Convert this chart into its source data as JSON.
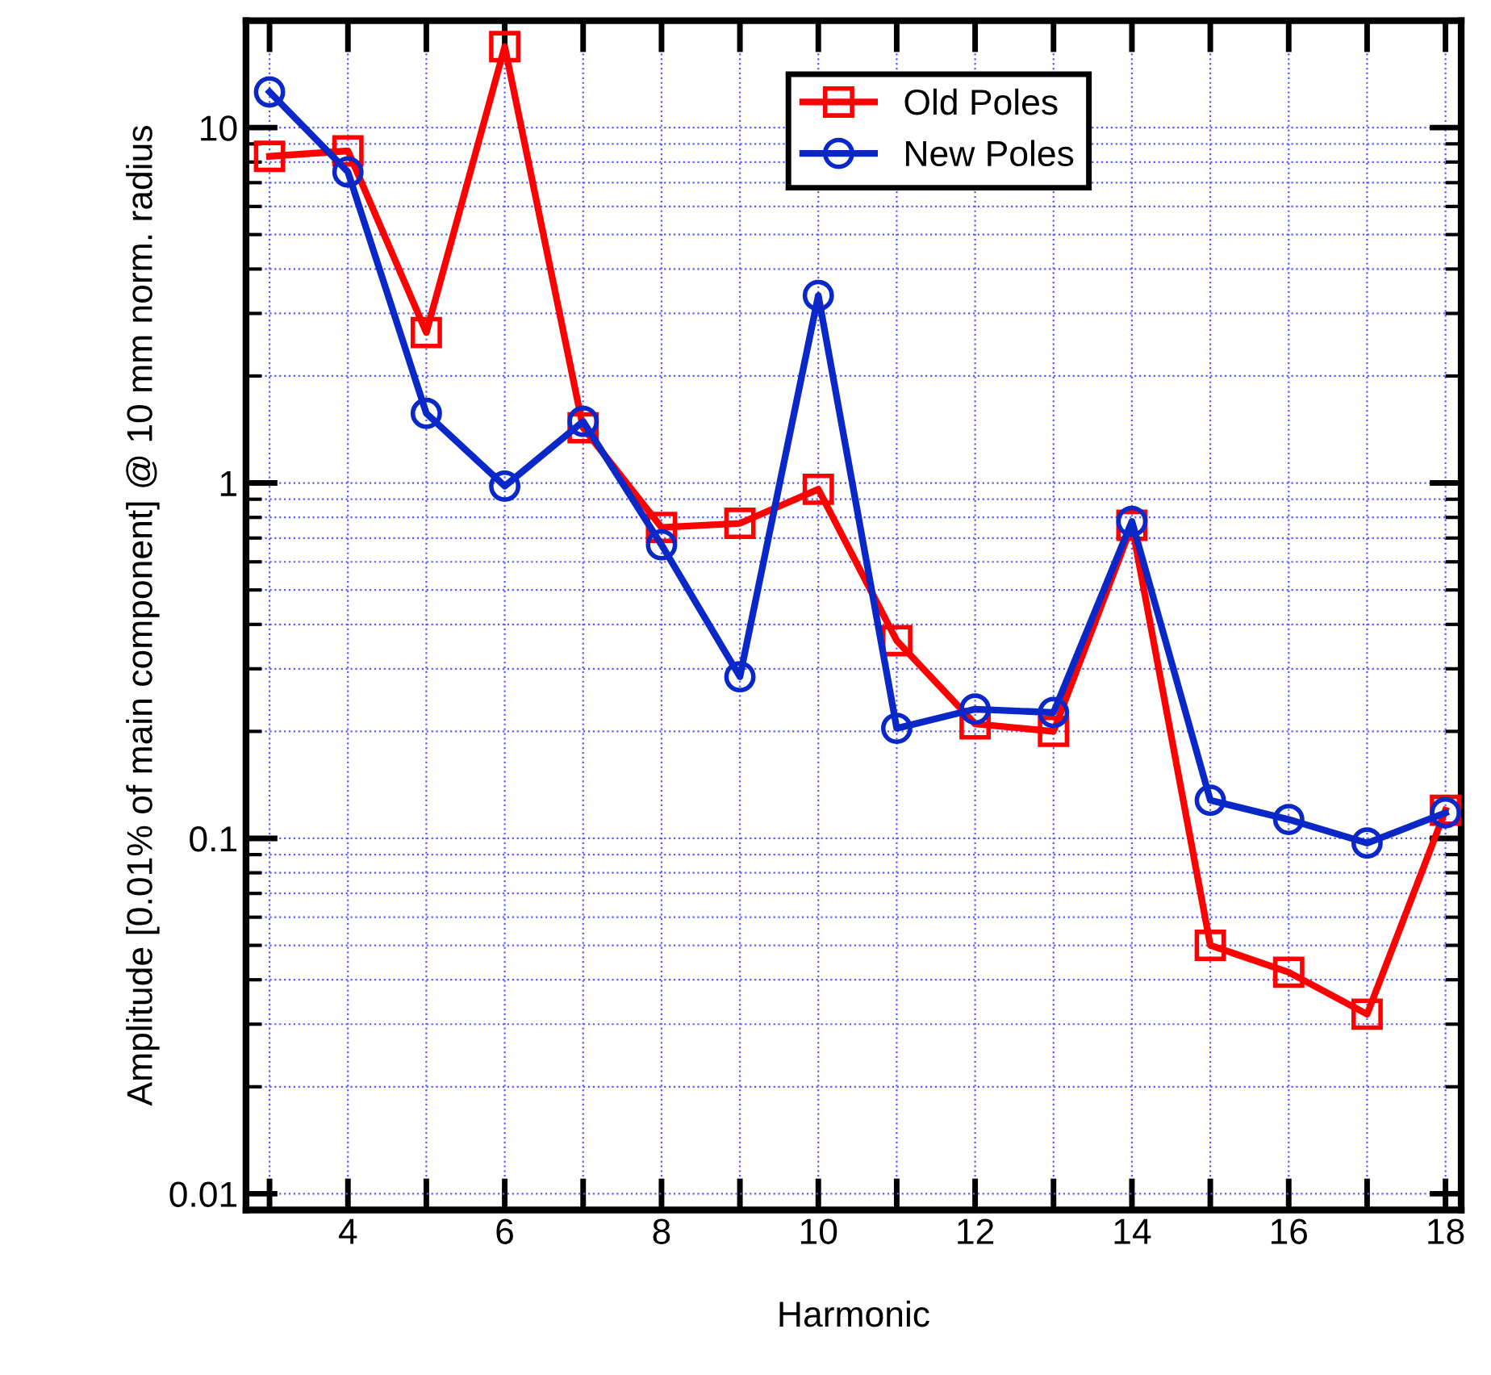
{
  "chart_data": {
    "type": "line",
    "xlabel": "Harmonic",
    "ylabel": "Amplitude [0.01% of main component] @ 10 mm norm. radius",
    "x": [
      3,
      4,
      5,
      6,
      7,
      8,
      9,
      10,
      11,
      12,
      13,
      14,
      15,
      16,
      17,
      18
    ],
    "series": [
      {
        "name": "Old Poles",
        "color": "#ff0000",
        "marker": "square",
        "values": [
          8.3,
          8.6,
          2.65,
          16.9,
          1.43,
          0.75,
          0.77,
          0.96,
          0.36,
          0.21,
          0.2,
          0.76,
          0.05,
          0.042,
          0.032,
          0.12
        ]
      },
      {
        "name": "New Poles",
        "color": "#0a28c8",
        "marker": "circle",
        "values": [
          12.6,
          7.5,
          1.57,
          0.98,
          1.49,
          0.67,
          0.285,
          3.37,
          0.204,
          0.231,
          0.226,
          0.78,
          0.128,
          0.113,
          0.097,
          0.118
        ]
      }
    ],
    "log": "y",
    "xlim": [
      2.7,
      18.2
    ],
    "ylim": [
      0.009,
      20
    ],
    "xticks": [
      {
        "value": 3,
        "label": null
      },
      4,
      {
        "value": 5,
        "label": null
      },
      6,
      {
        "value": 7,
        "label": null
      },
      8,
      {
        "value": 9,
        "label": null
      },
      10,
      {
        "value": 11,
        "label": null
      },
      12,
      {
        "value": 13,
        "label": null
      },
      14,
      {
        "value": 15,
        "label": null
      },
      16,
      {
        "value": 17,
        "label": null
      },
      18
    ],
    "yticks": [
      0.01,
      0.1,
      1,
      10
    ],
    "grid": true,
    "legend": "top",
    "line_style": "solid"
  }
}
